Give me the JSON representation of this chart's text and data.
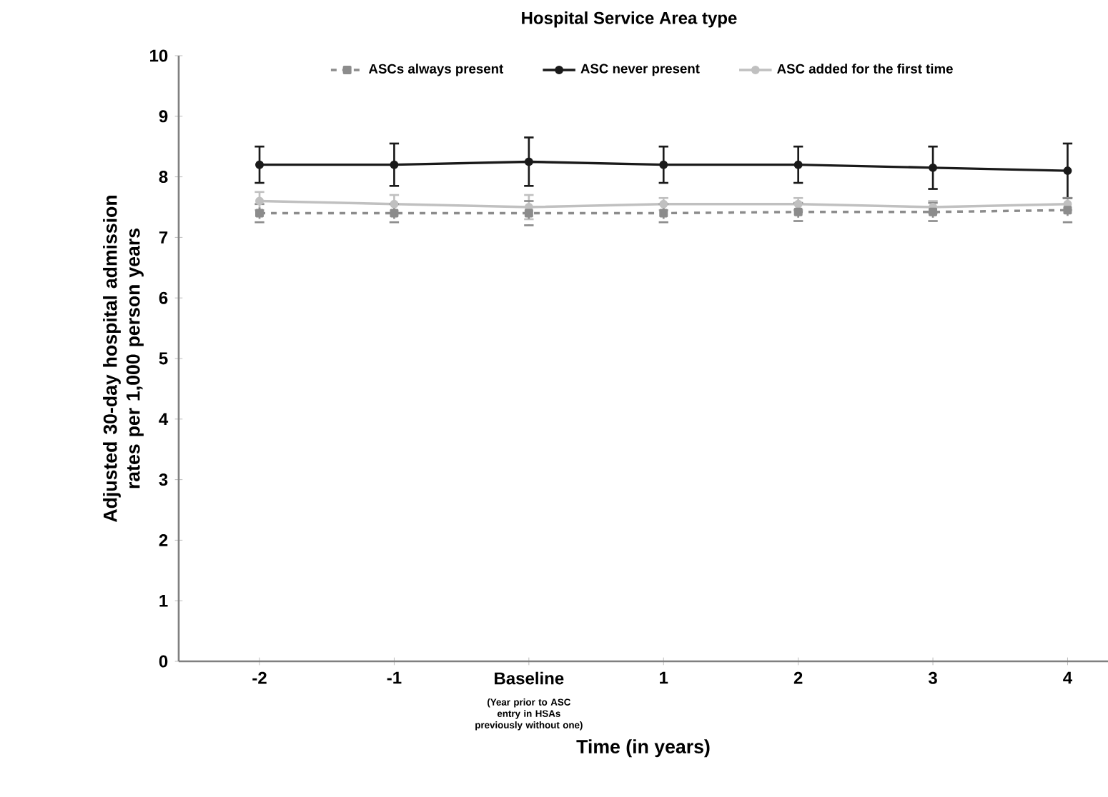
{
  "chart_data": {
    "type": "line",
    "title": "Hospital Service Area type",
    "xlabel": "Time (in years)",
    "ylabel": "Adjusted 30-day hospital admission rates per 1,000 person years",
    "categories": [
      "-2",
      "-1",
      "Baseline",
      "1",
      "2",
      "3",
      "4"
    ],
    "series": [
      {
        "name": "ASCs always present",
        "color": "#8c8c8c",
        "marker": "square",
        "line_style": "dashed",
        "values": [
          7.4,
          7.4,
          7.4,
          7.4,
          7.42,
          7.42,
          7.45
        ],
        "errors": [
          0.15,
          0.15,
          0.2,
          0.15,
          0.15,
          0.15,
          0.2
        ]
      },
      {
        "name": "ASC never present",
        "color": "#1a1a1a",
        "marker": "circle",
        "line_style": "solid",
        "values": [
          8.2,
          8.2,
          8.25,
          8.2,
          8.2,
          8.15,
          8.1
        ],
        "errors": [
          0.3,
          0.35,
          0.4,
          0.3,
          0.3,
          0.35,
          0.45
        ]
      },
      {
        "name": "ASC added for the first time",
        "color": "#c0c0c0",
        "marker": "circle",
        "line_style": "solid",
        "values": [
          7.6,
          7.55,
          7.5,
          7.55,
          7.55,
          7.5,
          7.55
        ],
        "errors": [
          0.15,
          0.15,
          0.2,
          0.1,
          0.1,
          0.1,
          0.1
        ]
      }
    ],
    "ylim": [
      0,
      10
    ],
    "yticks": [
      0,
      1,
      2,
      3,
      4,
      5,
      6,
      7,
      8,
      9,
      10
    ],
    "grid": false,
    "legend": "top",
    "annotations": [
      "(Year prior to ASC entry in HSAs previously without one)"
    ]
  }
}
